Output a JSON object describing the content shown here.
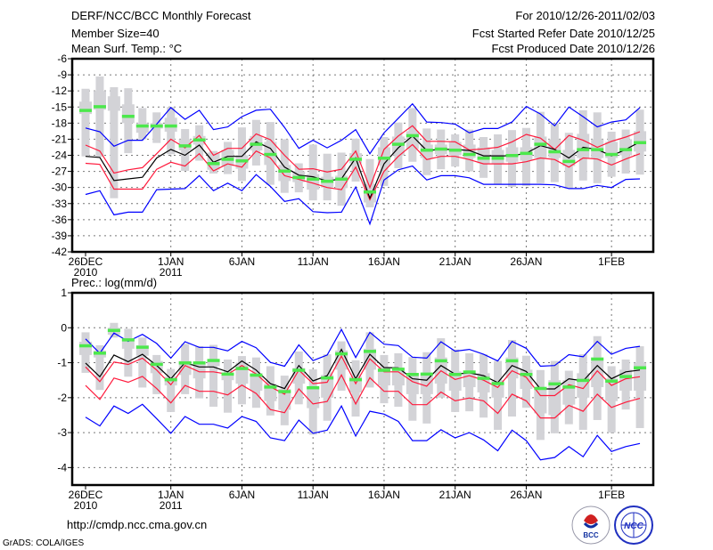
{
  "header": {
    "title": "DERF/NCC/BCC Monthly Forecast",
    "member_size": "Member Size=40",
    "variable": "Mean Surf. Temp.: °C",
    "period": "For 2010/12/26-2011/02/03",
    "started": "Fcst Started Refer Date 2010/12/25",
    "produced": "Fcst Produced Date 2010/12/26"
  },
  "footer": {
    "url": "http://cmdp.ncc.cma.gov.cn",
    "credit": "GrADS: COLA/IGES",
    "logo_bcc": "BCC",
    "logo_ncc": "NCC"
  },
  "colors": {
    "outer": "#0000ff",
    "inner": "#ff1a3c",
    "mean": "#000000",
    "box": "#d3d3d7",
    "marker": "#4ce84c"
  },
  "chart_data": [
    {
      "type": "line",
      "title": "Mean Surf. Temp.: °C",
      "ylabel": "°C",
      "ylim": [
        -42,
        -6
      ],
      "yticks": [
        "-6",
        "-9",
        "-12",
        "-15",
        "-18",
        "-21",
        "-24",
        "-27",
        "-30",
        "-33",
        "-36",
        "-39",
        "-42"
      ],
      "yvals": [
        -6,
        -9,
        -12,
        -15,
        -18,
        -21,
        -24,
        -27,
        -30,
        -33,
        -36,
        -39,
        -42
      ],
      "xticks": [
        {
          "day": 0,
          "label": "26DEC",
          "sub": "2010"
        },
        {
          "day": 6,
          "label": "1JAN",
          "sub": "2011"
        },
        {
          "day": 11,
          "label": "6JAN"
        },
        {
          "day": 16,
          "label": "11JAN"
        },
        {
          "day": 21,
          "label": "16JAN"
        },
        {
          "day": 26,
          "label": "21JAN"
        },
        {
          "day": 31,
          "label": "26JAN"
        },
        {
          "day": 37,
          "label": "1FEB"
        }
      ],
      "grid": true,
      "series": [
        {
          "name": "outer-upper",
          "color": "outer",
          "values": [
            -18.9,
            -19.6,
            -22.3,
            -21.2,
            -21.2,
            -18.2,
            -15.1,
            -17.3,
            -15.6,
            -19.2,
            -18.7,
            -16.8,
            -15.6,
            -15.4,
            -18.8,
            -22.7,
            -21.2,
            -22.6,
            -21.2,
            -19.2,
            -23.7,
            -19.8,
            -17.1,
            -14.4,
            -17.8,
            -17.9,
            -18.2,
            -19.8,
            -19,
            -19,
            -17.8,
            -14.9,
            -16.3,
            -18.5,
            -15,
            -16.8,
            -18.7,
            -17.8,
            -17.4,
            -15.1
          ]
        },
        {
          "name": "outer-lower",
          "color": "outer",
          "values": [
            -31.3,
            -30.6,
            -35.1,
            -34.6,
            -34.6,
            -30.4,
            -30.3,
            -30.2,
            -27.8,
            -30.6,
            -29.2,
            -30.6,
            -27.6,
            -29.8,
            -32.6,
            -32.1,
            -34.5,
            -34.7,
            -34.6,
            -29.9,
            -36.8,
            -28.6,
            -26.7,
            -26,
            -28.6,
            -27.8,
            -27.8,
            -28.2,
            -29.4,
            -29.4,
            -29.4,
            -29.4,
            -29.4,
            -29.5,
            -30.2,
            -30.2,
            -29.6,
            -30,
            -28.5,
            -28.4
          ]
        },
        {
          "name": "inner-upper",
          "color": "inner",
          "values": [
            -22.1,
            -23.2,
            -27.3,
            -26.7,
            -26.3,
            -23.7,
            -21,
            -22.6,
            -20.3,
            -24,
            -22.7,
            -22.7,
            -20,
            -21.1,
            -24,
            -26.6,
            -26.5,
            -27.1,
            -26.6,
            -23.2,
            -30,
            -22.9,
            -20.4,
            -18.5,
            -21.4,
            -21.4,
            -21.5,
            -23,
            -22.8,
            -22.5,
            -21.5,
            -20.1,
            -20.8,
            -22.9,
            -20.3,
            -21.2,
            -22.5,
            -21.4,
            -20.6,
            -19.6
          ]
        },
        {
          "name": "inner-lower",
          "color": "inner",
          "values": [
            -25.5,
            -25.7,
            -30.3,
            -30.3,
            -30.3,
            -26.6,
            -25.3,
            -26,
            -23.7,
            -26.9,
            -25.6,
            -26.2,
            -23.2,
            -24.5,
            -27.8,
            -28.5,
            -29.2,
            -30,
            -30.4,
            -26.2,
            -32.3,
            -27,
            -24.2,
            -22,
            -24.8,
            -24.2,
            -24.2,
            -24.8,
            -25.6,
            -25.6,
            -25.6,
            -25.2,
            -24.5,
            -24.8,
            -26.2,
            -24.5,
            -24.7,
            -25.8,
            -24.7,
            -23.7
          ]
        },
        {
          "name": "ensemble-mean",
          "color": "mean",
          "values": [
            -24.2,
            -24.4,
            -28.7,
            -28.4,
            -28.1,
            -24.5,
            -22.9,
            -24,
            -22.1,
            -25.3,
            -24.2,
            -24.2,
            -21.5,
            -22.7,
            -26.2,
            -27.7,
            -28,
            -28.8,
            -28.4,
            -24.5,
            -32,
            -25.6,
            -22.6,
            -20.4,
            -23.1,
            -22.9,
            -22.9,
            -23.1,
            -24.1,
            -24.1,
            -24.1,
            -23.6,
            -22.2,
            -22.9,
            -24.5,
            -22.5,
            -22.9,
            -24.1,
            -22.9,
            -21.5
          ]
        }
      ],
      "boxes": {
        "max": [
          -11.6,
          -9.3,
          -11.3,
          -11.5,
          -15.2,
          -16,
          -15,
          -19.1,
          -18.4,
          -23.2,
          -21.5,
          -18.8,
          -17.4,
          -17.8,
          -21,
          -25.5,
          -22,
          -23.7,
          -23.5,
          -20.9,
          -24.7,
          -20.6,
          -17.9,
          -15.2,
          -19,
          -19.2,
          -20.1,
          -19.2,
          -20.6,
          -20.1,
          -19.3,
          -18.9,
          -15.9,
          -18.1,
          -19.8,
          -15.6,
          -16,
          -19.6,
          -19.2,
          -15.5
        ],
        "q3": [
          -14,
          -12,
          -13,
          -14.5,
          -18,
          -18,
          -17,
          -21,
          -20.4,
          -23.5,
          -23,
          -24,
          -20.4,
          -21.5,
          -25.8,
          -27,
          -27.5,
          -28,
          -27.8,
          -23.6,
          -29.4,
          -22.5,
          -20.5,
          -19.5,
          -22,
          -22,
          -21.5,
          -22,
          -22.5,
          -23,
          -22.5,
          -22.5,
          -20.5,
          -21,
          -23,
          -20,
          -21,
          -21.5,
          -21,
          -19.5
        ],
        "q1": [
          -16.3,
          -15.5,
          -15.7,
          -18,
          -19.8,
          -19,
          -19.6,
          -23.1,
          -22,
          -26.7,
          -26,
          -26.5,
          -23.1,
          -25.8,
          -28.8,
          -29,
          -30.4,
          -30,
          -30.1,
          -25.5,
          -32.8,
          -25.9,
          -24,
          -22.8,
          -24.5,
          -23.8,
          -24,
          -24.5,
          -25.5,
          -25.5,
          -25.2,
          -25,
          -24.5,
          -24.5,
          -26,
          -24.5,
          -24.5,
          -24.5,
          -24,
          -23.3
        ],
        "min": [
          -24.2,
          -24.3,
          -32,
          -23.6,
          -21,
          -21.7,
          -23.8,
          -26.9,
          -25,
          -27.4,
          -27.5,
          -28.8,
          -25.9,
          -29.5,
          -31,
          -30.9,
          -32.4,
          -32.4,
          -33.4,
          -28.9,
          -33.7,
          -29.7,
          -26.4,
          -25.2,
          -27.7,
          -26.6,
          -26.1,
          -27,
          -28.2,
          -29.3,
          -29.9,
          -29.7,
          -29.2,
          -29,
          -30.2,
          -28.7,
          -29.2,
          -28,
          -27.4,
          -27.6
        ]
      },
      "markers": [
        -15.6,
        -14.9,
        null,
        -16.7,
        -18.5,
        -18.5,
        -18.5,
        -22.2,
        -21.1,
        -25.5,
        -24.7,
        -25,
        -21.9,
        -23.8,
        -26.9,
        -28.1,
        -28.4,
        -28.8,
        -28.4,
        -24.7,
        -30.8,
        -24.5,
        -21.9,
        -20.3,
        -23,
        -22.8,
        -23,
        -23.8,
        -24.5,
        -24.5,
        -24,
        -23.6,
        -21.9,
        -23.3,
        -25.1,
        -22.9,
        -22.9,
        -23.8,
        -22.9,
        -21.6
      ]
    },
    {
      "type": "line",
      "title": "Prec.: log(mm/d)",
      "ylabel": "log(mm/d)",
      "ylim": [
        -4.5,
        1
      ],
      "yticks": [
        "1",
        "0",
        "-1",
        "-2",
        "-3",
        "-4"
      ],
      "yvals": [
        1,
        0,
        -1,
        -2,
        -3,
        -4
      ],
      "xticks": [
        {
          "day": 0,
          "label": "26DEC",
          "sub": "2010"
        },
        {
          "day": 6,
          "label": "1JAN",
          "sub": "2011"
        },
        {
          "day": 11,
          "label": "6JAN"
        },
        {
          "day": 16,
          "label": "11JAN"
        },
        {
          "day": 21,
          "label": "16JAN"
        },
        {
          "day": 26,
          "label": "21JAN"
        },
        {
          "day": 31,
          "label": "26JAN"
        },
        {
          "day": 37,
          "label": "1FEB"
        }
      ],
      "grid": true,
      "series": [
        {
          "name": "outer-upper",
          "color": "outer",
          "values": [
            -0.32,
            -0.73,
            -0.15,
            -0.39,
            -0.19,
            -0.45,
            -0.87,
            -0.4,
            -0.56,
            -0.56,
            -0.66,
            -0.39,
            -0.57,
            -0.99,
            -1.1,
            -0.49,
            -0.94,
            -0.78,
            -0.05,
            -0.85,
            -0.13,
            -0.47,
            -0.51,
            -0.84,
            -0.87,
            -0.4,
            -0.67,
            -0.62,
            -0.76,
            -0.95,
            -0.39,
            -0.59,
            -1.1,
            -1.08,
            -0.77,
            -0.83,
            -0.39,
            -0.76,
            -0.59,
            -0.53
          ]
        },
        {
          "name": "outer-lower",
          "color": "outer",
          "values": [
            -2.56,
            -2.81,
            -2.24,
            -2.45,
            -2.19,
            -2.6,
            -3.02,
            -2.54,
            -2.76,
            -2.76,
            -2.87,
            -2.54,
            -2.68,
            -3.15,
            -3.23,
            -2.64,
            -3.02,
            -2.93,
            -2.24,
            -3.1,
            -2.39,
            -2.47,
            -2.68,
            -3.23,
            -3.23,
            -2.92,
            -3.15,
            -3,
            -3.21,
            -3.52,
            -2.93,
            -3.23,
            -3.78,
            -3.71,
            -3.4,
            -3.69,
            -3.08,
            -3.54,
            -3.4,
            -3.31
          ]
        },
        {
          "name": "inner-upper",
          "color": "inner",
          "values": [
            -1.12,
            -1.54,
            -0.98,
            -1.05,
            -0.87,
            -1.21,
            -1.63,
            -1.08,
            -1.26,
            -1.26,
            -1.33,
            -1.08,
            -1.32,
            -1.69,
            -1.9,
            -1.21,
            -1.6,
            -1.56,
            -0.81,
            -1.6,
            -0.89,
            -1.26,
            -1.26,
            -1.54,
            -1.67,
            -1.23,
            -1.48,
            -1.37,
            -1.5,
            -1.71,
            -1.23,
            -1.42,
            -1.94,
            -1.94,
            -1.63,
            -1.74,
            -1.23,
            -1.65,
            -1.46,
            -1.4
          ]
        },
        {
          "name": "inner-lower",
          "color": "inner",
          "values": [
            -1.65,
            -2.05,
            -1.44,
            -1.56,
            -1.39,
            -1.74,
            -2.15,
            -1.65,
            -1.82,
            -1.82,
            -1.92,
            -1.64,
            -1.88,
            -2.34,
            -2.43,
            -1.75,
            -2.18,
            -2.11,
            -1.35,
            -2.18,
            -1.43,
            -1.82,
            -1.82,
            -2.2,
            -2.2,
            -1.84,
            -2.09,
            -2.01,
            -2.09,
            -2.45,
            -1.9,
            -2.09,
            -2.58,
            -2.58,
            -2.22,
            -2.39,
            -1.9,
            -2.28,
            -2.13,
            -2.02
          ]
        },
        {
          "name": "ensemble-mean",
          "color": "mean",
          "values": [
            -1.01,
            -1.4,
            -0.78,
            -0.97,
            -0.76,
            -1.08,
            -1.46,
            -1,
            -1.12,
            -1.12,
            -1.26,
            -0.95,
            -1.21,
            -1.6,
            -1.74,
            -1.08,
            -1.52,
            -1.37,
            -0.62,
            -1.46,
            -0.76,
            -1.14,
            -1.15,
            -1.46,
            -1.5,
            -1.08,
            -1.33,
            -1.29,
            -1.37,
            -1.57,
            -1.08,
            -1.25,
            -1.75,
            -1.75,
            -1.46,
            -1.52,
            -1.08,
            -1.46,
            -1.26,
            -1.21
          ]
        }
      ],
      "boxes": {
        "max": [
          -0.13,
          -0.5,
          0.14,
          -0.03,
          -0.28,
          -0.78,
          -1.18,
          -0.46,
          -0.53,
          -0.49,
          -0.91,
          -0.81,
          -0.85,
          -1.1,
          -1.37,
          -0.68,
          -1.19,
          -0.76,
          -0.39,
          -0.93,
          -0.13,
          -0.78,
          -0.73,
          -0.84,
          -0.7,
          -0.3,
          -0.62,
          -0.73,
          -0.76,
          -0.95,
          -0.35,
          -0.8,
          -1.21,
          -0.95,
          -1.23,
          -0.76,
          -0.24,
          -1.1,
          -0.91,
          -0.53
        ],
        "q3": [
          -0.4,
          -0.65,
          0,
          -0.3,
          -0.5,
          -0.95,
          -1.4,
          -0.95,
          -1,
          -0.9,
          -1.3,
          -1,
          -1.3,
          -1.6,
          -1.75,
          -1.15,
          -1.7,
          -1.35,
          -0.65,
          -1.4,
          -0.6,
          -1.15,
          -1.2,
          -1.3,
          -1.3,
          -0.85,
          -1.25,
          -1.3,
          -1.3,
          -1.5,
          -0.85,
          -1.2,
          -1.7,
          -1.5,
          -1.5,
          -1.3,
          -0.85,
          -1.45,
          -1.2,
          -1
        ],
        "q1": [
          -0.78,
          -0.85,
          -0.2,
          -0.6,
          -0.8,
          -1.3,
          -1.65,
          -1.35,
          -1.45,
          -1.1,
          -1.5,
          -1.6,
          -1.8,
          -2.1,
          -2.35,
          -1.6,
          -2.3,
          -2,
          -1.2,
          -1.85,
          -1.2,
          -1.65,
          -1.65,
          -1.9,
          -1.9,
          -1.6,
          -1.8,
          -1.7,
          -1.85,
          -2,
          -1.45,
          -1.75,
          -2.45,
          -2.5,
          -2.2,
          -2,
          -1.7,
          -2.1,
          -1.8,
          -1.8
        ],
        "min": [
          -1.29,
          -1.78,
          -0.28,
          -1.4,
          -1.71,
          -1.9,
          -2.41,
          -1.9,
          -2.02,
          -2.26,
          -2.43,
          -2.19,
          -2.29,
          -2.51,
          -2.79,
          -2.19,
          -3.06,
          -2.66,
          -1.8,
          -2.54,
          -1.71,
          -2.16,
          -2.26,
          -2.66,
          -2.74,
          -2,
          -2.41,
          -2.39,
          -2.57,
          -2.92,
          -2.54,
          -2.29,
          -3.21,
          -3.02,
          -2.76,
          -2.92,
          -2.64,
          -3,
          -2.34,
          -2.87
        ]
      },
      "markers": [
        -0.51,
        -0.72,
        -0.07,
        -0.34,
        -0.55,
        -1.04,
        -1.48,
        -1,
        -1,
        -0.93,
        -1.32,
        -1.16,
        -1.35,
        -1.69,
        -1.82,
        -1.21,
        -1.71,
        -1.43,
        -0.74,
        -1.48,
        -0.67,
        -1.21,
        -1.18,
        -1.33,
        -1.32,
        -0.94,
        -1.33,
        -1.26,
        -1.44,
        -1.59,
        -0.94,
        -1.33,
        -1.73,
        -1.6,
        -1.69,
        -1.5,
        -0.89,
        -1.52,
        -1.39,
        -1.14
      ]
    }
  ]
}
